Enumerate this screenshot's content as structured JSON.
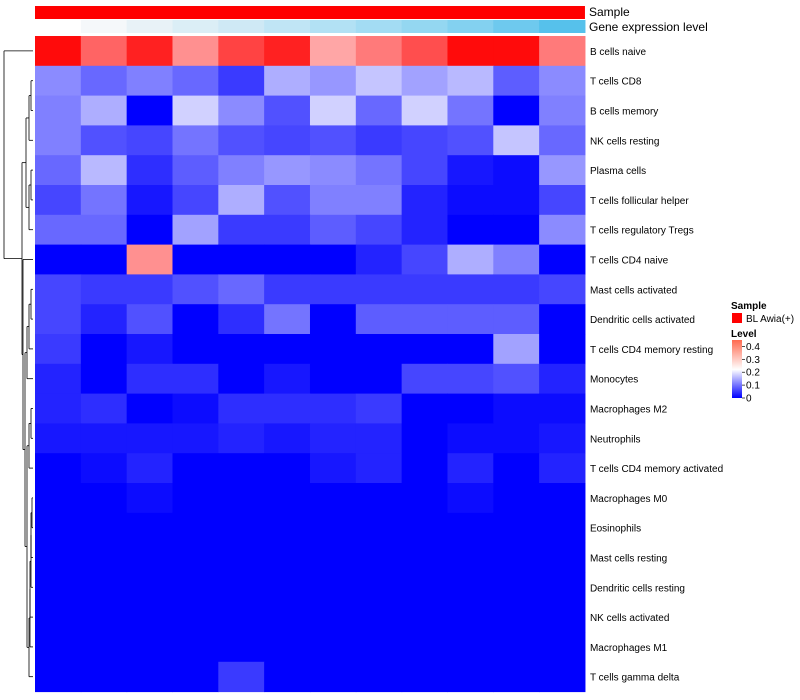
{
  "chart_data": {
    "type": "heatmap",
    "rows": [
      "B cells naive",
      "T cells CD8",
      "B cells memory",
      "NK cells resting",
      "Plasma cells",
      "T cells follicular helper",
      "T cells regulatory  Tregs",
      "T cells CD4 naive",
      "Mast cells activated",
      "Dendritic cells activated",
      "T cells CD4 memory resting",
      "Monocytes",
      "Macrophages M2",
      "Neutrophils",
      "T cells CD4 memory activated",
      "Macrophages M0",
      "Eosinophils",
      "Mast cells resting",
      "Dendritic cells resting",
      "NK cells activated",
      "Macrophages M1",
      "T cells gamma delta"
    ],
    "values": [
      [
        0.44,
        0.36,
        0.42,
        0.32,
        0.39,
        0.42,
        0.3,
        0.34,
        0.38,
        0.44,
        0.44,
        0.34
      ],
      [
        0.12,
        0.09,
        0.11,
        0.09,
        0.05,
        0.15,
        0.13,
        0.17,
        0.14,
        0.16,
        0.08,
        0.12
      ],
      [
        0.11,
        0.15,
        0.0,
        0.18,
        0.12,
        0.07,
        0.18,
        0.09,
        0.18,
        0.1,
        0.0,
        0.11
      ],
      [
        0.11,
        0.07,
        0.06,
        0.1,
        0.07,
        0.06,
        0.07,
        0.05,
        0.06,
        0.07,
        0.17,
        0.09
      ],
      [
        0.09,
        0.16,
        0.04,
        0.08,
        0.11,
        0.13,
        0.12,
        0.1,
        0.06,
        0.02,
        0.01,
        0.13
      ],
      [
        0.06,
        0.1,
        0.02,
        0.06,
        0.15,
        0.07,
        0.11,
        0.11,
        0.03,
        0.01,
        0.01,
        0.06
      ],
      [
        0.09,
        0.09,
        0.0,
        0.14,
        0.05,
        0.05,
        0.08,
        0.06,
        0.03,
        0.0,
        0.0,
        0.12
      ],
      [
        0.0,
        0.0,
        0.32,
        0.0,
        0.0,
        0.0,
        0.0,
        0.03,
        0.06,
        0.15,
        0.11,
        0.0
      ],
      [
        0.06,
        0.05,
        0.05,
        0.07,
        0.09,
        0.05,
        0.05,
        0.05,
        0.05,
        0.05,
        0.05,
        0.06
      ],
      [
        0.06,
        0.03,
        0.07,
        0.0,
        0.04,
        0.1,
        0.0,
        0.08,
        0.08,
        0.08,
        0.08,
        0.0
      ],
      [
        0.05,
        0.0,
        0.02,
        0.0,
        0.0,
        0.0,
        0.0,
        0.0,
        0.0,
        0.0,
        0.14,
        0.0
      ],
      [
        0.03,
        0.0,
        0.04,
        0.04,
        0.0,
        0.02,
        0.0,
        0.0,
        0.06,
        0.06,
        0.07,
        0.03
      ],
      [
        0.03,
        0.04,
        0.0,
        0.01,
        0.04,
        0.04,
        0.04,
        0.05,
        0.0,
        0.0,
        0.01,
        0.01
      ],
      [
        0.02,
        0.02,
        0.02,
        0.02,
        0.03,
        0.02,
        0.03,
        0.03,
        0.0,
        0.01,
        0.01,
        0.02
      ],
      [
        0.0,
        0.01,
        0.03,
        0.0,
        0.0,
        0.0,
        0.02,
        0.03,
        0.0,
        0.03,
        0.0,
        0.03
      ],
      [
        0.0,
        0.0,
        0.01,
        0.0,
        0.0,
        0.0,
        0.0,
        0.0,
        0.0,
        0.01,
        0.0,
        0.0
      ],
      [
        0.0,
        0.0,
        0.0,
        0.0,
        0.0,
        0.0,
        0.0,
        0.0,
        0.0,
        0.0,
        0.0,
        0.0
      ],
      [
        0.0,
        0.0,
        0.0,
        0.0,
        0.0,
        0.0,
        0.0,
        0.0,
        0.0,
        0.0,
        0.0,
        0.0
      ],
      [
        0.0,
        0.0,
        0.0,
        0.0,
        0.0,
        0.0,
        0.0,
        0.0,
        0.0,
        0.0,
        0.0,
        0.0
      ],
      [
        0.0,
        0.0,
        0.0,
        0.0,
        0.0,
        0.0,
        0.0,
        0.0,
        0.0,
        0.0,
        0.0,
        0.0
      ],
      [
        0.0,
        0.0,
        0.0,
        0.0,
        0.0,
        0.0,
        0.0,
        0.0,
        0.0,
        0.0,
        0.0,
        0.0
      ],
      [
        0.0,
        0.0,
        0.0,
        0.0,
        0.05,
        0.0,
        0.0,
        0.0,
        0.0,
        0.0,
        0.0,
        0.0
      ]
    ],
    "color_scale": {
      "stops": [
        {
          "value": 0,
          "color": "#0000ff"
        },
        {
          "value": 0.22,
          "color": "#ffffff"
        },
        {
          "value": 0.45,
          "color": "#ff0000"
        }
      ]
    },
    "legend_scale": {
      "min": 0,
      "max": 0.45
    },
    "annotations": {
      "sample": {
        "label": "Sample",
        "color": "#ff0000",
        "legend_title": "Sample",
        "legend_entry": "BL Awia(+)"
      },
      "gene_expression": {
        "label": "Gene expression level",
        "colors": [
          "#ffffff",
          "#f5f8fa",
          "#e8f2f7",
          "#dbeef6",
          "#cfe9f5",
          "#c0e5f5",
          "#b2e1f4",
          "#a3dcf3",
          "#94d7f1",
          "#83d1f0",
          "#6ec9ee",
          "#56c1eb"
        ]
      }
    },
    "legend": {
      "title": "Level",
      "ticks": [
        "0",
        "0.1",
        "0.2",
        "0.3",
        "0.4"
      ],
      "tick_values": [
        0,
        0.1,
        0.2,
        0.3,
        0.4
      ],
      "position": "right"
    },
    "dendrogram": "rows"
  }
}
